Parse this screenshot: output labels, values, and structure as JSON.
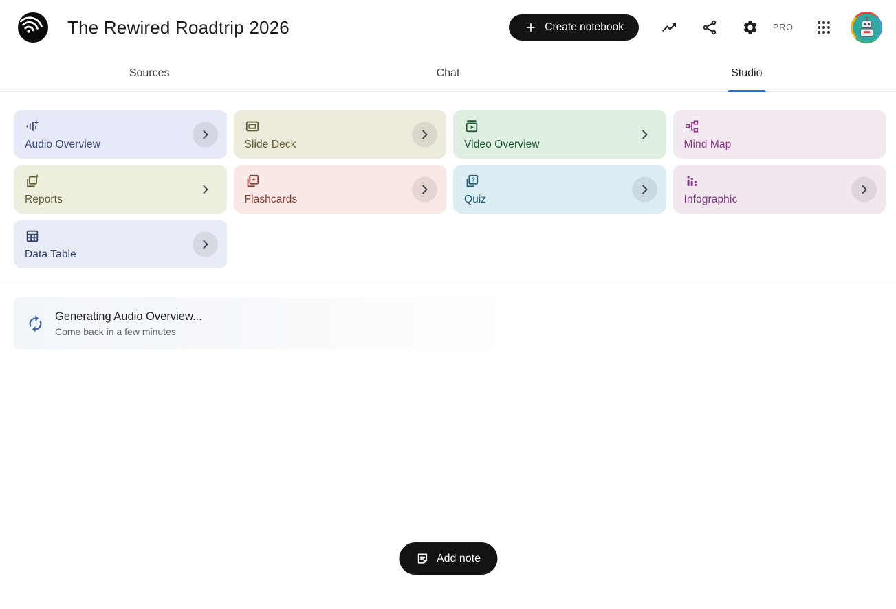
{
  "header": {
    "title": "The Rewired Roadtrip 2026",
    "create_button": "Create notebook",
    "pro_badge": "PRO"
  },
  "tabs": [
    {
      "label": "Sources",
      "active": false
    },
    {
      "label": "Chat",
      "active": false
    },
    {
      "label": "Studio",
      "active": true
    }
  ],
  "studio": {
    "cards": [
      {
        "label": "Audio Overview",
        "icon": "audio-waveform-icon",
        "bg": "#e6e9f7",
        "fg": "#3d4c77",
        "chevron": "circle"
      },
      {
        "label": "Slide Deck",
        "icon": "slide-deck-icon",
        "bg": "#ecebdc",
        "fg": "#605d35",
        "chevron": "circle"
      },
      {
        "label": "Video Overview",
        "icon": "video-overview-icon",
        "bg": "#dff0e2",
        "fg": "#1e5c31",
        "chevron": "plain"
      },
      {
        "label": "Mind Map",
        "icon": "mind-map-icon",
        "bg": "#f3e9f1",
        "fg": "#8d3a8d",
        "chevron": "none"
      },
      {
        "label": "Reports",
        "icon": "reports-icon",
        "bg": "#eeeedf",
        "fg": "#605d35",
        "chevron": "plain"
      },
      {
        "label": "Flashcards",
        "icon": "flashcards-icon",
        "bg": "#f9e8e5",
        "fg": "#8d3a32",
        "chevron": "circle"
      },
      {
        "label": "Quiz",
        "icon": "quiz-icon",
        "bg": "#dcedf4",
        "fg": "#1f5f7d",
        "chevron": "circle"
      },
      {
        "label": "Infographic",
        "icon": "infographic-icon",
        "bg": "#f2e7ef",
        "fg": "#7e3383",
        "chevron": "circle"
      },
      {
        "label": "Data Table",
        "icon": "data-table-icon",
        "bg": "#e8ecf6",
        "fg": "#2f3f64",
        "chevron": "circle"
      }
    ],
    "status": {
      "title": "Generating Audio Overview...",
      "subtitle": "Come back in a few minutes",
      "spinner_color": "#3a5fa8"
    },
    "add_note_label": "Add note"
  },
  "colors": {
    "active_tab_underline": "#1a73e8",
    "primary_button_bg": "#131313"
  }
}
